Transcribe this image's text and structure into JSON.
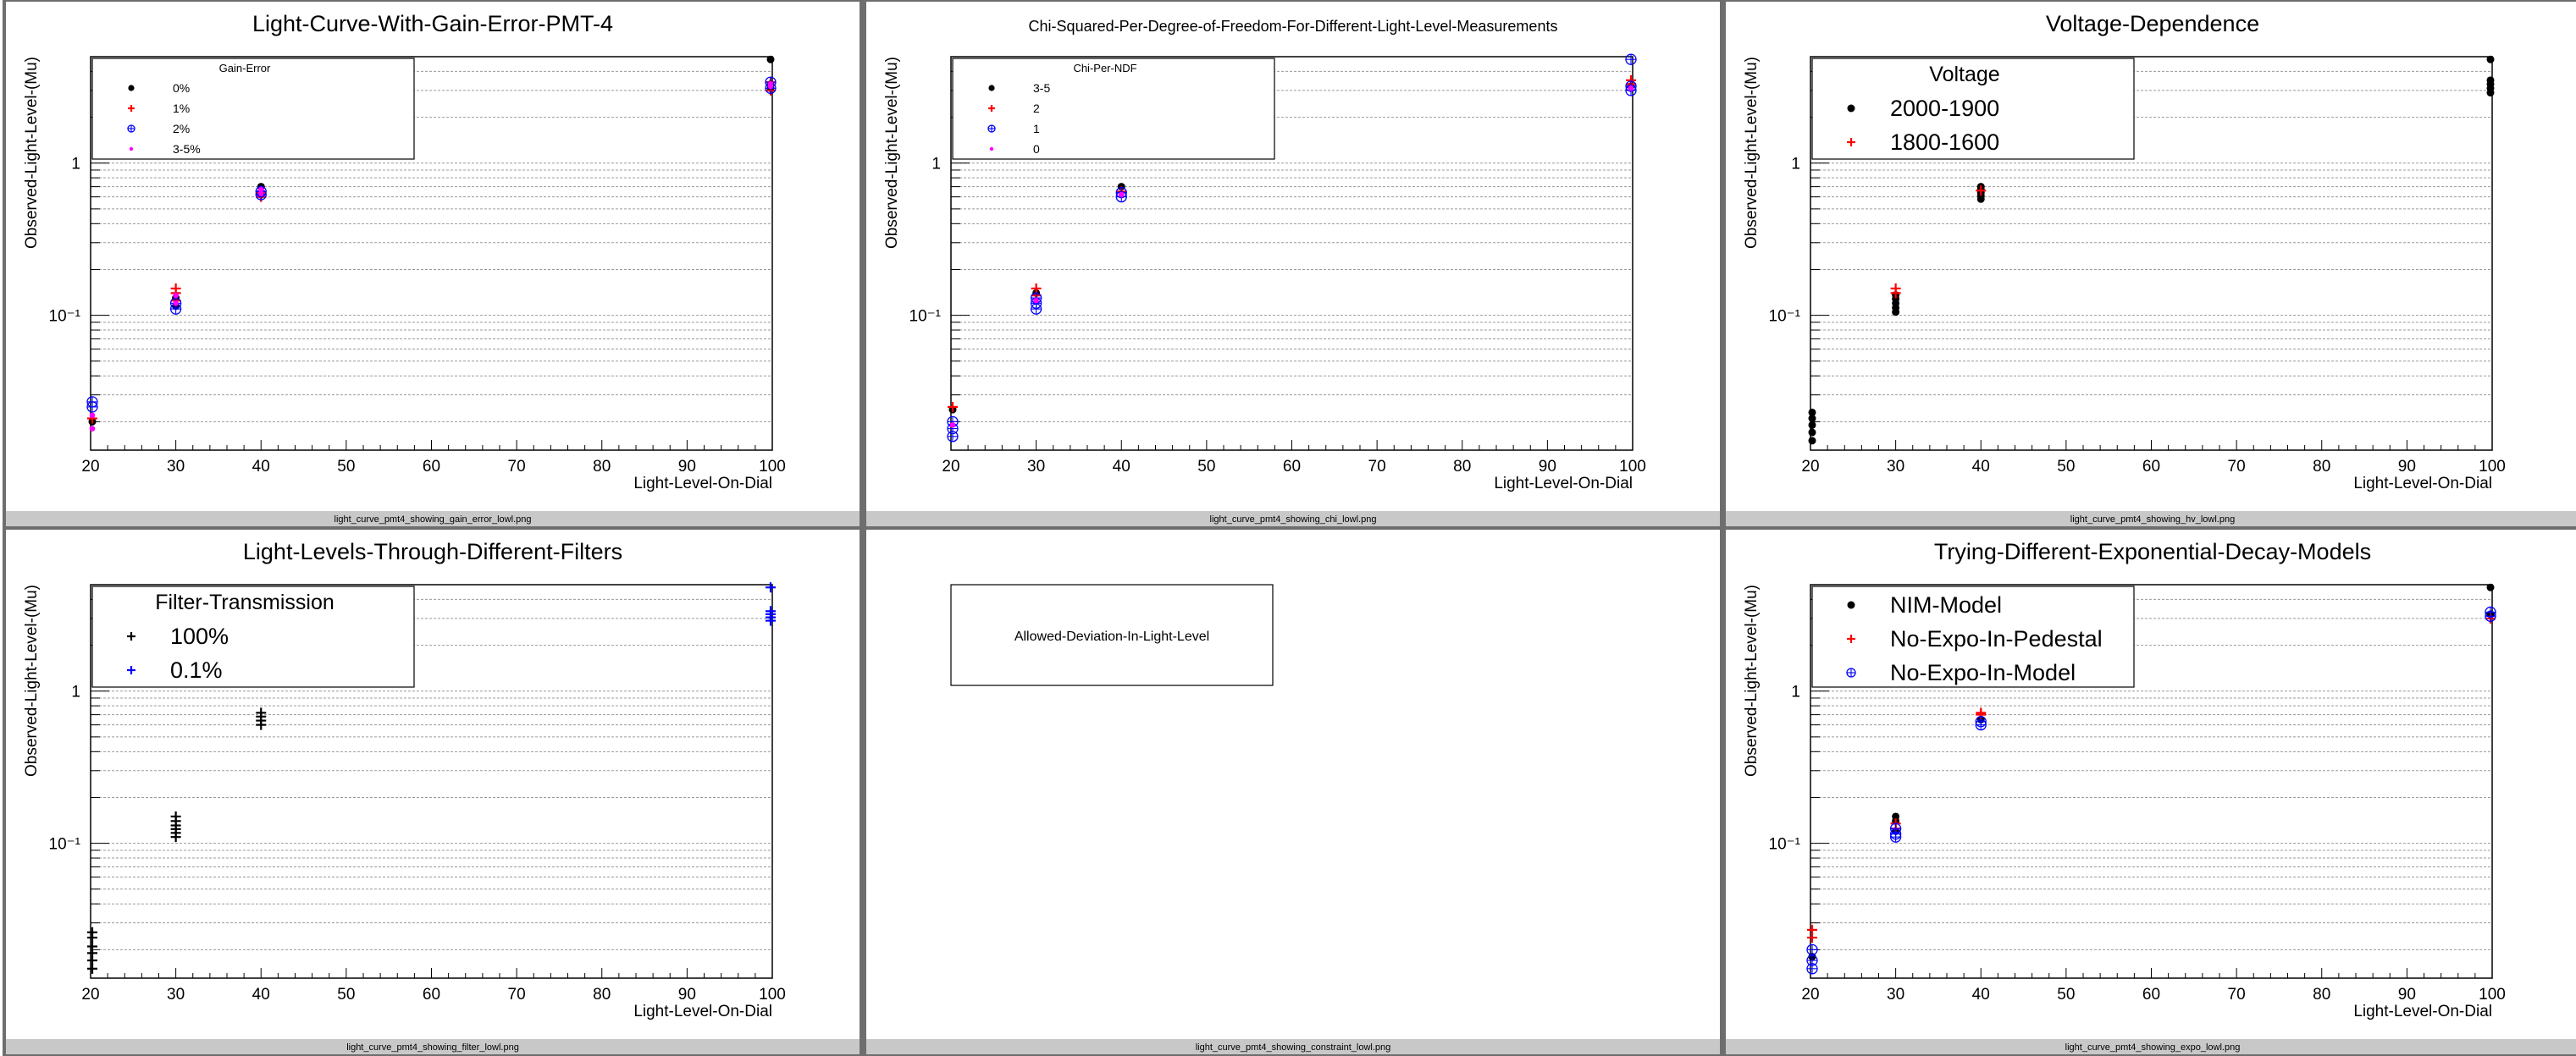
{
  "colors": {
    "black": "#000000",
    "red": "#ff0000",
    "blue": "#0000ff",
    "magenta": "#ff00ff",
    "pad_border": "#6e6e6e",
    "footer": "#c8c8c8",
    "grid": "#9a9a9a"
  },
  "chart_data": [
    {
      "id": "gain",
      "type": "scatter",
      "title": "Light-Curve-With-Gain-Error-PMT-4",
      "xlabel": "Light-Level-On-Dial",
      "ylabel": "Observed-Light-Level-(Mu)",
      "footer": "light_curve_pmt4_showing_gain_error_lowl.png",
      "xlim": [
        20,
        100
      ],
      "ylim": [
        0.013,
        5.0
      ],
      "yscale": "log",
      "xticks": [
        "20",
        "30",
        "40",
        "50",
        "60",
        "70",
        "80",
        "90",
        "100"
      ],
      "yticks": [
        "10⁻¹",
        "1"
      ],
      "grid": "horizontal",
      "legend_title": "Gain-Error",
      "legend_size": "small",
      "series": [
        {
          "name": "0%",
          "marker": "dot",
          "color": "#000000",
          "points": [
            [
              20,
              0.02
            ],
            [
              30,
              0.115
            ],
            [
              30,
              0.13
            ],
            [
              40,
              0.62
            ],
            [
              40,
              0.7
            ],
            [
              100,
              3.1
            ],
            [
              100,
              3.3
            ],
            [
              100,
              4.8
            ]
          ]
        },
        {
          "name": "1%",
          "marker": "cross",
          "color": "#ff0000",
          "points": [
            [
              20,
              0.021
            ],
            [
              30,
              0.125
            ],
            [
              30,
              0.14
            ],
            [
              30,
              0.15
            ],
            [
              40,
              0.6
            ],
            [
              40,
              0.64
            ],
            [
              100,
              3.0
            ],
            [
              100,
              3.4
            ]
          ]
        },
        {
          "name": "2%",
          "marker": "circplus",
          "color": "#0000ff",
          "points": [
            [
              20,
              0.025
            ],
            [
              20,
              0.027
            ],
            [
              30,
              0.11
            ],
            [
              30,
              0.12
            ],
            [
              40,
              0.62
            ],
            [
              40,
              0.65
            ],
            [
              100,
              3.1
            ],
            [
              100,
              3.4
            ]
          ]
        },
        {
          "name": "3-5%",
          "marker": "star",
          "color": "#ff00ff",
          "points": [
            [
              20,
              0.018
            ],
            [
              20,
              0.022
            ],
            [
              30,
              0.12
            ],
            [
              30,
              0.135
            ],
            [
              40,
              0.63
            ],
            [
              40,
              0.67
            ],
            [
              100,
              3.2
            ],
            [
              100,
              3.3
            ]
          ]
        }
      ]
    },
    {
      "id": "chi",
      "type": "scatter",
      "title": "Chi-Squared-Per-Degree-of-Freedom-For-Different-Light-Level-Measurements",
      "xlabel": "Light-Level-On-Dial",
      "ylabel": "Observed-Light-Level-(Mu)",
      "footer": "light_curve_pmt4_showing_chi_lowl.png",
      "xlim": [
        20,
        100
      ],
      "ylim": [
        0.013,
        5.0
      ],
      "yscale": "log",
      "xticks": [
        "20",
        "30",
        "40",
        "50",
        "60",
        "70",
        "80",
        "90",
        "100"
      ],
      "yticks": [
        "10⁻¹",
        "1"
      ],
      "grid": "horizontal",
      "legend_title": "Chi-Per-NDF",
      "legend_size": "small",
      "series": [
        {
          "name": "3-5",
          "marker": "dot",
          "color": "#000000",
          "points": [
            [
              20,
              0.024
            ],
            [
              30,
              0.14
            ],
            [
              40,
              0.7
            ],
            [
              100,
              3.2
            ]
          ]
        },
        {
          "name": "2",
          "marker": "cross",
          "color": "#ff0000",
          "points": [
            [
              20,
              0.025
            ],
            [
              30,
              0.15
            ],
            [
              30,
              0.135
            ],
            [
              40,
              0.65
            ],
            [
              100,
              3.3
            ],
            [
              100,
              3.5
            ]
          ]
        },
        {
          "name": "1",
          "marker": "circplus",
          "color": "#0000ff",
          "points": [
            [
              20,
              0.016
            ],
            [
              20,
              0.018
            ],
            [
              20,
              0.02
            ],
            [
              30,
              0.11
            ],
            [
              30,
              0.12
            ],
            [
              30,
              0.13
            ],
            [
              40,
              0.6
            ],
            [
              40,
              0.64
            ],
            [
              100,
              3.0
            ],
            [
              100,
              3.2
            ],
            [
              100,
              4.8
            ]
          ]
        },
        {
          "name": "0",
          "marker": "star",
          "color": "#ff00ff",
          "points": [
            [
              20,
              0.019
            ],
            [
              30,
              0.125
            ],
            [
              40,
              0.62
            ],
            [
              100,
              3.1
            ]
          ]
        }
      ]
    },
    {
      "id": "hv",
      "type": "scatter",
      "title": "Voltage-Dependence",
      "xlabel": "Light-Level-On-Dial",
      "ylabel": "Observed-Light-Level-(Mu)",
      "footer": "light_curve_pmt4_showing_hv_lowl.png",
      "xlim": [
        20,
        100
      ],
      "ylim": [
        0.013,
        5.0
      ],
      "yscale": "log",
      "xticks": [
        "20",
        "30",
        "40",
        "50",
        "60",
        "70",
        "80",
        "90",
        "100"
      ],
      "yticks": [
        "10⁻¹",
        "1"
      ],
      "grid": "horizontal",
      "legend_title": "Voltage",
      "legend_size": "large",
      "series": [
        {
          "name": "2000-1900",
          "marker": "dot",
          "color": "#000000",
          "points": [
            [
              20,
              0.015
            ],
            [
              20,
              0.017
            ],
            [
              20,
              0.019
            ],
            [
              20,
              0.021
            ],
            [
              20,
              0.023
            ],
            [
              30,
              0.105
            ],
            [
              30,
              0.112
            ],
            [
              30,
              0.12
            ],
            [
              30,
              0.128
            ],
            [
              30,
              0.136
            ],
            [
              40,
              0.58
            ],
            [
              40,
              0.61
            ],
            [
              40,
              0.64
            ],
            [
              40,
              0.67
            ],
            [
              40,
              0.7
            ],
            [
              100,
              2.9
            ],
            [
              100,
              3.1
            ],
            [
              100,
              3.3
            ],
            [
              100,
              3.5
            ],
            [
              100,
              4.8
            ]
          ]
        },
        {
          "name": "1800-1600",
          "marker": "cross",
          "color": "#ff0000",
          "points": [
            [
              30,
              0.14
            ],
            [
              30,
              0.15
            ],
            [
              40,
              0.66
            ]
          ]
        }
      ]
    },
    {
      "id": "filter",
      "type": "scatter",
      "title": "Light-Levels-Through-Different-Filters",
      "xlabel": "Light-Level-On-Dial",
      "ylabel": "Observed-Light-Level-(Mu)",
      "footer": "light_curve_pmt4_showing_filter_lowl.png",
      "xlim": [
        20,
        100
      ],
      "ylim": [
        0.013,
        5.0
      ],
      "yscale": "log",
      "xticks": [
        "20",
        "30",
        "40",
        "50",
        "60",
        "70",
        "80",
        "90",
        "100"
      ],
      "yticks": [
        "10⁻¹",
        "1"
      ],
      "grid": "horizontal",
      "legend_title": "Filter-Transmission",
      "legend_size": "large",
      "series": [
        {
          "name": "100%",
          "marker": "cross",
          "color": "#000000",
          "points": [
            [
              20,
              0.015
            ],
            [
              20,
              0.017
            ],
            [
              20,
              0.019
            ],
            [
              20,
              0.021
            ],
            [
              20,
              0.024
            ],
            [
              20,
              0.026
            ],
            [
              30,
              0.11
            ],
            [
              30,
              0.117
            ],
            [
              30,
              0.124
            ],
            [
              30,
              0.131
            ],
            [
              30,
              0.14
            ],
            [
              30,
              0.15
            ],
            [
              40,
              0.6
            ],
            [
              40,
              0.64
            ],
            [
              40,
              0.68
            ],
            [
              40,
              0.72
            ]
          ]
        },
        {
          "name": "0.1%",
          "marker": "cross",
          "color": "#0000ff",
          "points": [
            [
              100,
              2.9
            ],
            [
              100,
              3.05
            ],
            [
              100,
              3.2
            ],
            [
              100,
              3.35
            ],
            [
              100,
              4.8
            ]
          ]
        }
      ]
    },
    {
      "id": "constraint",
      "type": "scatter",
      "title": "",
      "footer": "light_curve_pmt4_showing_constraint_lowl.png",
      "legend_title": "Allowed-Deviation-In-Light-Level",
      "series": []
    },
    {
      "id": "expo",
      "type": "scatter",
      "title": "Trying-Different-Exponential-Decay-Models",
      "xlabel": "Light-Level-On-Dial",
      "ylabel": "Observed-Light-Level-(Mu)",
      "footer": "light_curve_pmt4_showing_expo_lowl.png",
      "xlim": [
        20,
        100
      ],
      "ylim": [
        0.013,
        5.0
      ],
      "yscale": "log",
      "xticks": [
        "20",
        "30",
        "40",
        "50",
        "60",
        "70",
        "80",
        "90",
        "100"
      ],
      "yticks": [
        "10⁻¹",
        "1"
      ],
      "grid": "horizontal",
      "legend_title": "",
      "legend_size": "large",
      "series": [
        {
          "name": "NIM-Model",
          "marker": "dot",
          "color": "#000000",
          "points": [
            [
              20,
              0.018
            ],
            [
              30,
              0.12
            ],
            [
              30,
              0.14
            ],
            [
              30,
              0.15
            ],
            [
              40,
              0.65
            ],
            [
              100,
              3.2
            ],
            [
              100,
              4.8
            ]
          ]
        },
        {
          "name": "No-Expo-In-Pedestal",
          "marker": "cross",
          "color": "#ff0000",
          "points": [
            [
              20,
              0.024
            ],
            [
              20,
              0.027
            ],
            [
              30,
              0.125
            ],
            [
              30,
              0.135
            ],
            [
              40,
              0.7
            ],
            [
              40,
              0.72
            ],
            [
              100,
              3.0
            ]
          ]
        },
        {
          "name": "No-Expo-In-Model",
          "marker": "circplus",
          "color": "#0000ff",
          "points": [
            [
              20,
              0.015
            ],
            [
              20,
              0.017
            ],
            [
              20,
              0.02
            ],
            [
              30,
              0.11
            ],
            [
              30,
              0.115
            ],
            [
              30,
              0.125
            ],
            [
              40,
              0.6
            ],
            [
              40,
              0.63
            ],
            [
              100,
              3.1
            ],
            [
              100,
              3.3
            ]
          ]
        }
      ]
    }
  ]
}
